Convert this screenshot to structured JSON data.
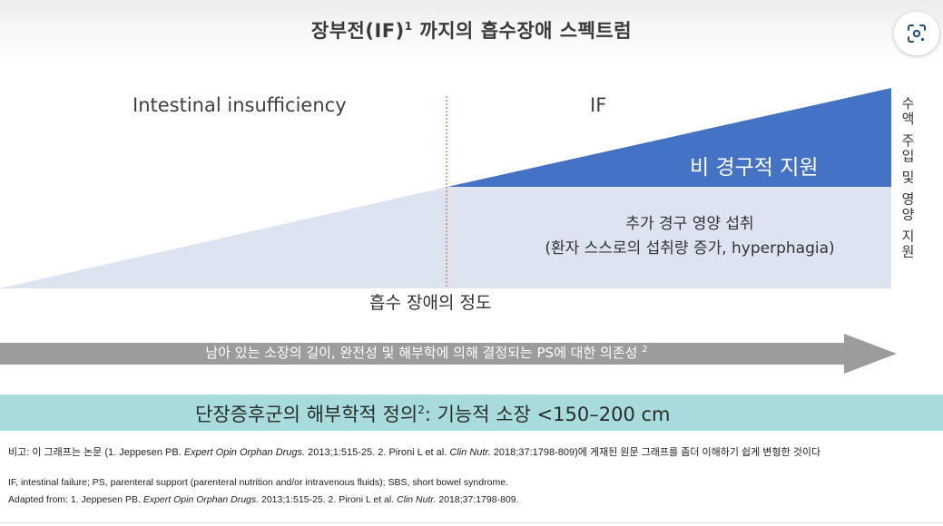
{
  "title": {
    "text": "장부전(IF)",
    "sup": "1",
    "rest": " 까지의 흡수장애 스펙트럼"
  },
  "lens_button": {
    "icon": "google-lens-icon"
  },
  "diagram": {
    "left_region_label": "Intestinal insufficiency",
    "right_region_label": "IF",
    "iv_support_label": "비 경구적 지원",
    "oral_label_line1": "추가 경구 영양 섭취",
    "oral_label_line2": "(환자 스스로의 섭취량 증가, hyperphagia)",
    "vertical_label": "수액 주입 및 영양 지원",
    "axis_label": "흡수 장애의 정도",
    "colors": {
      "light_region": "#dce3f1",
      "iv_region": "#4472c4",
      "divider": "#e8742a",
      "arrow": "#9c9c9c",
      "banner": "#a8dcdc"
    }
  },
  "arrow": {
    "text": "남아 있는 소장의 길이, 완전성 및 해부학에 의해 결정되는 PS에 대한 의존성",
    "sup": "2"
  },
  "banner": {
    "text": "단장증후군의 해부학적 정의",
    "sup": "2",
    "rest": ": 기능적 소장 <150–200 cm"
  },
  "notes": {
    "korean_a": "비고: 이 그래프는 논문 (1. Jeppesen PB. ",
    "korean_journal1": "Expert Opin Orphan Drugs.",
    "korean_b": " 2013;1:515-25. 2. Pironi L et al. ",
    "korean_journal2": "Clin Nutr.",
    "korean_c": " 2018;37:1798-809)에 게재된 원문 그래프를 좀더 이해하기 쉽게 변형한 것이다",
    "abbreviations": "IF, intestinal failure; PS, parenteral support (parenteral nutrition and/or intravenous fluids); SBS, short bowel syndrome.",
    "adapted_a": "Adapted from: 1. Jeppesen PB. ",
    "adapted_journal1": "Expert Opin Orphan Drugs.",
    "adapted_b": " 2013;1:515-25. 2. Pironi L et al. ",
    "adapted_journal2": "Clin Nutr.",
    "adapted_c": " 2018;37:1798-809."
  }
}
